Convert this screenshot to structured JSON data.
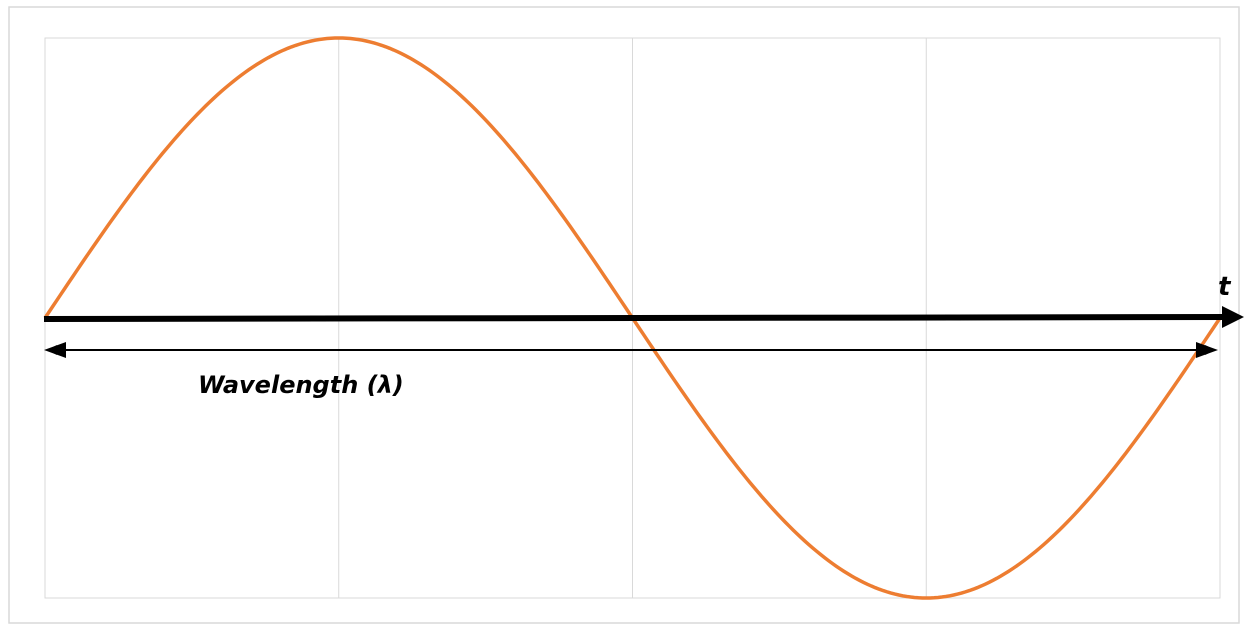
{
  "diagram": {
    "axis_label": "t",
    "wavelength_label": "Wavelength (λ)"
  },
  "colors": {
    "wave": "#ed7d31",
    "axis": "#000000",
    "grid": "#d9d9d9",
    "outer_border": "#d9d9d9",
    "background": "#ffffff"
  },
  "chart_data": {
    "type": "line",
    "title": "",
    "xlabel": "t",
    "ylabel": "",
    "grid": "vertical lines at each quarter period",
    "legend": "none",
    "series": [
      {
        "function": "sine",
        "periods": 1,
        "amplitude": 1,
        "values": [
          0,
          0.707,
          1,
          0.707,
          0,
          -0.707,
          -1,
          -0.707,
          0
        ]
      }
    ],
    "x": [
      0,
      0.125,
      0.25,
      0.375,
      0.5,
      0.625,
      0.75,
      0.875,
      1
    ],
    "ylim": [
      -1,
      1
    ],
    "annotations": [
      {
        "text": "Wavelength (λ)",
        "type": "double-arrow spanning one full period"
      }
    ]
  }
}
